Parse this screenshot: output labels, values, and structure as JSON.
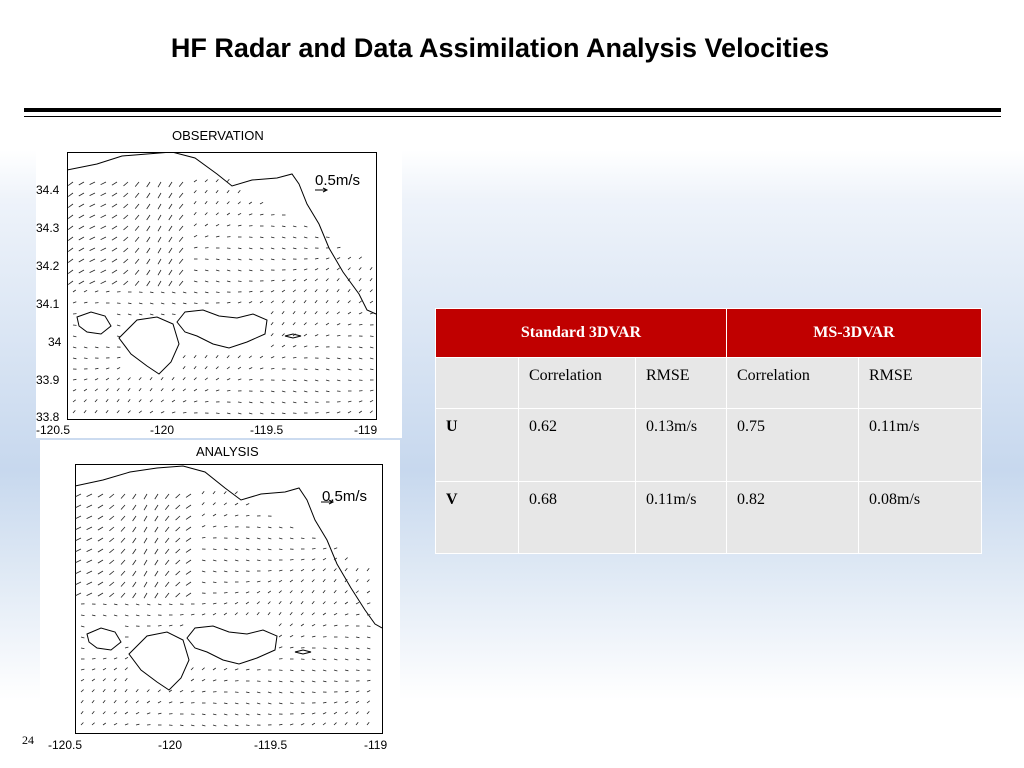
{
  "slide": {
    "title": "HF Radar and Data Assimilation Analysis Velocities",
    "page_number": "24"
  },
  "figures": {
    "observation": {
      "title": "OBSERVATION",
      "scale": "0.5m/s",
      "y_ticks": [
        "34.4",
        "34.3",
        "34.2",
        "34.1",
        "34",
        "33.9",
        "33.8"
      ],
      "x_ticks": [
        "-120.5",
        "-120",
        "-119.5",
        "-119"
      ]
    },
    "analysis": {
      "title": "ANALYSIS",
      "scale": "0.5m/s",
      "x_ticks": [
        "-120.5",
        "-120",
        "-119.5",
        "-119"
      ]
    }
  },
  "table": {
    "group_headers": [
      "Standard 3DVAR",
      "MS-3DVAR"
    ],
    "sub_headers": [
      "",
      "Correlation",
      "RMSE",
      "Correlation",
      "RMSE"
    ],
    "rows": [
      {
        "label": "U",
        "values": [
          "0.62",
          "0.13m/s",
          "0.75",
          "0.11m/s"
        ]
      },
      {
        "label": "V",
        "values": [
          "0.68",
          "0.11m/s",
          "0.82",
          "0.08m/s"
        ]
      }
    ]
  }
}
